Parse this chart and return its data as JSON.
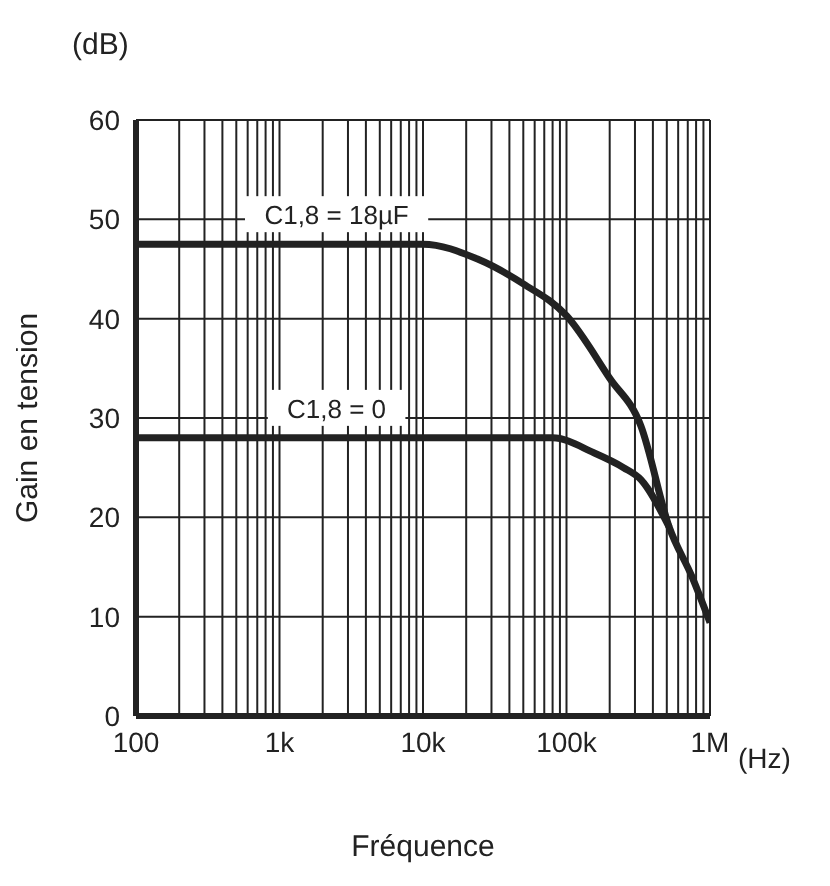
{
  "chart_data": {
    "type": "line",
    "xlabel": "Fréquence",
    "ylabel": "Gain en tension",
    "annotations": [
      "(dB)",
      "(Hz)"
    ],
    "log": "x",
    "xlim": [
      100,
      1000000
    ],
    "xticks": [
      {
        "value": 100,
        "label": "100"
      },
      {
        "value": 1000,
        "label": "1k"
      },
      {
        "value": 10000,
        "label": "10k"
      },
      {
        "value": 100000,
        "label": "100k"
      },
      {
        "value": 1000000,
        "label": "1M"
      }
    ],
    "ylim": [
      0,
      60
    ],
    "yticks": [
      0,
      10,
      20,
      30,
      40,
      50,
      60
    ],
    "grid": true,
    "marker": "none",
    "line_style": "solid",
    "series": [
      {
        "name": "C1,8 = 18µF",
        "color": "#222222",
        "x": [
          100,
          2500,
          10000,
          24000,
          50000,
          100000,
          200000,
          330000,
          520000,
          750000,
          1000000
        ],
        "values": [
          47.5,
          47.5,
          47.5,
          46,
          43.5,
          40.3,
          34,
          29.2,
          19,
          14,
          9.4
        ]
      },
      {
        "name": "C1,8 = 0",
        "color": "#222222",
        "x": [
          100,
          2500,
          10000,
          50000,
          80000,
          155000,
          250000,
          330000,
          520000
        ],
        "values": [
          28,
          28,
          28,
          28,
          28,
          26.5,
          25,
          23.8,
          19
        ]
      }
    ]
  }
}
